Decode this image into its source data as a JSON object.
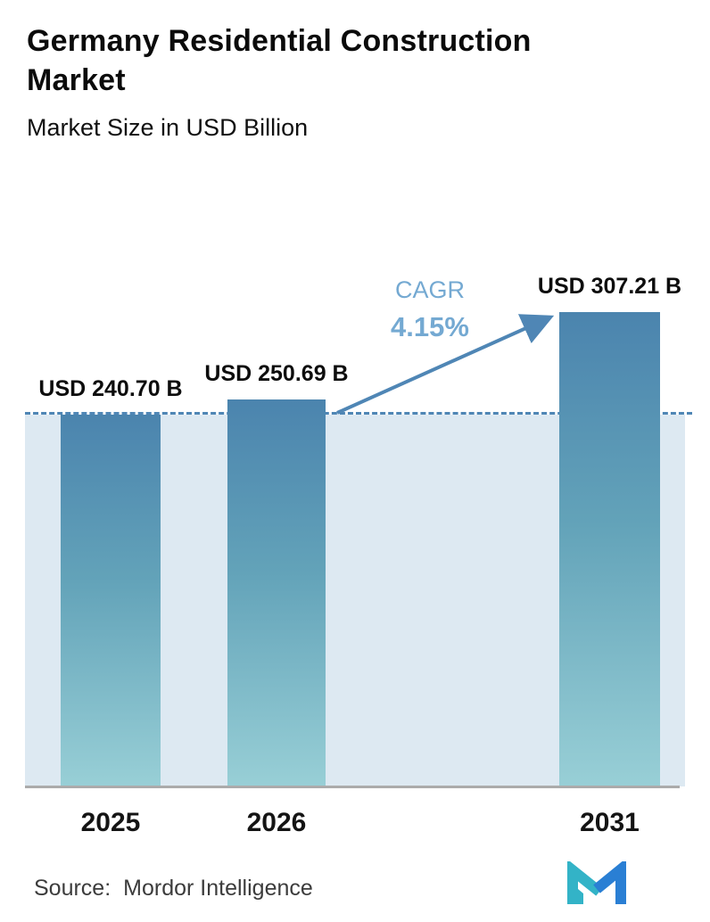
{
  "header": {
    "title": "Germany Residential Construction Market",
    "subtitle": "Market Size in USD Billion"
  },
  "chart_data": {
    "type": "bar",
    "title": "Germany Residential Construction Market",
    "subtitle": "Market Size in USD Billion",
    "categories": [
      "2025",
      "2026",
      "2031"
    ],
    "values": [
      240.7,
      250.69,
      307.21
    ],
    "value_labels": [
      "USD 240.70 B",
      "USD 250.69 B",
      "USD 307.21 B"
    ],
    "unit": "USD Billion",
    "ylim": [
      0,
      336
    ],
    "grid": false,
    "legend": "none",
    "annotations": {
      "cagr_label": "CAGR",
      "cagr_value": "4.15%",
      "dashed_line_at_value": 240.7,
      "arrow": "from 2026 bar to 2031 bar"
    },
    "colors": {
      "bar_gradient_top": "#4b84ae",
      "bar_gradient_bottom": "#98cfd6",
      "background_band": "#dde9f2",
      "dashed_line": "#4f86b5",
      "arrow": "#4f86b5",
      "cagr_text": "#74a9d2",
      "axis_line": "#ababab",
      "logo_teal": "#33b3c7",
      "logo_blue": "#2a7fd4"
    }
  },
  "footer": {
    "source_label": "Source:",
    "source_name": "Mordor Intelligence"
  }
}
